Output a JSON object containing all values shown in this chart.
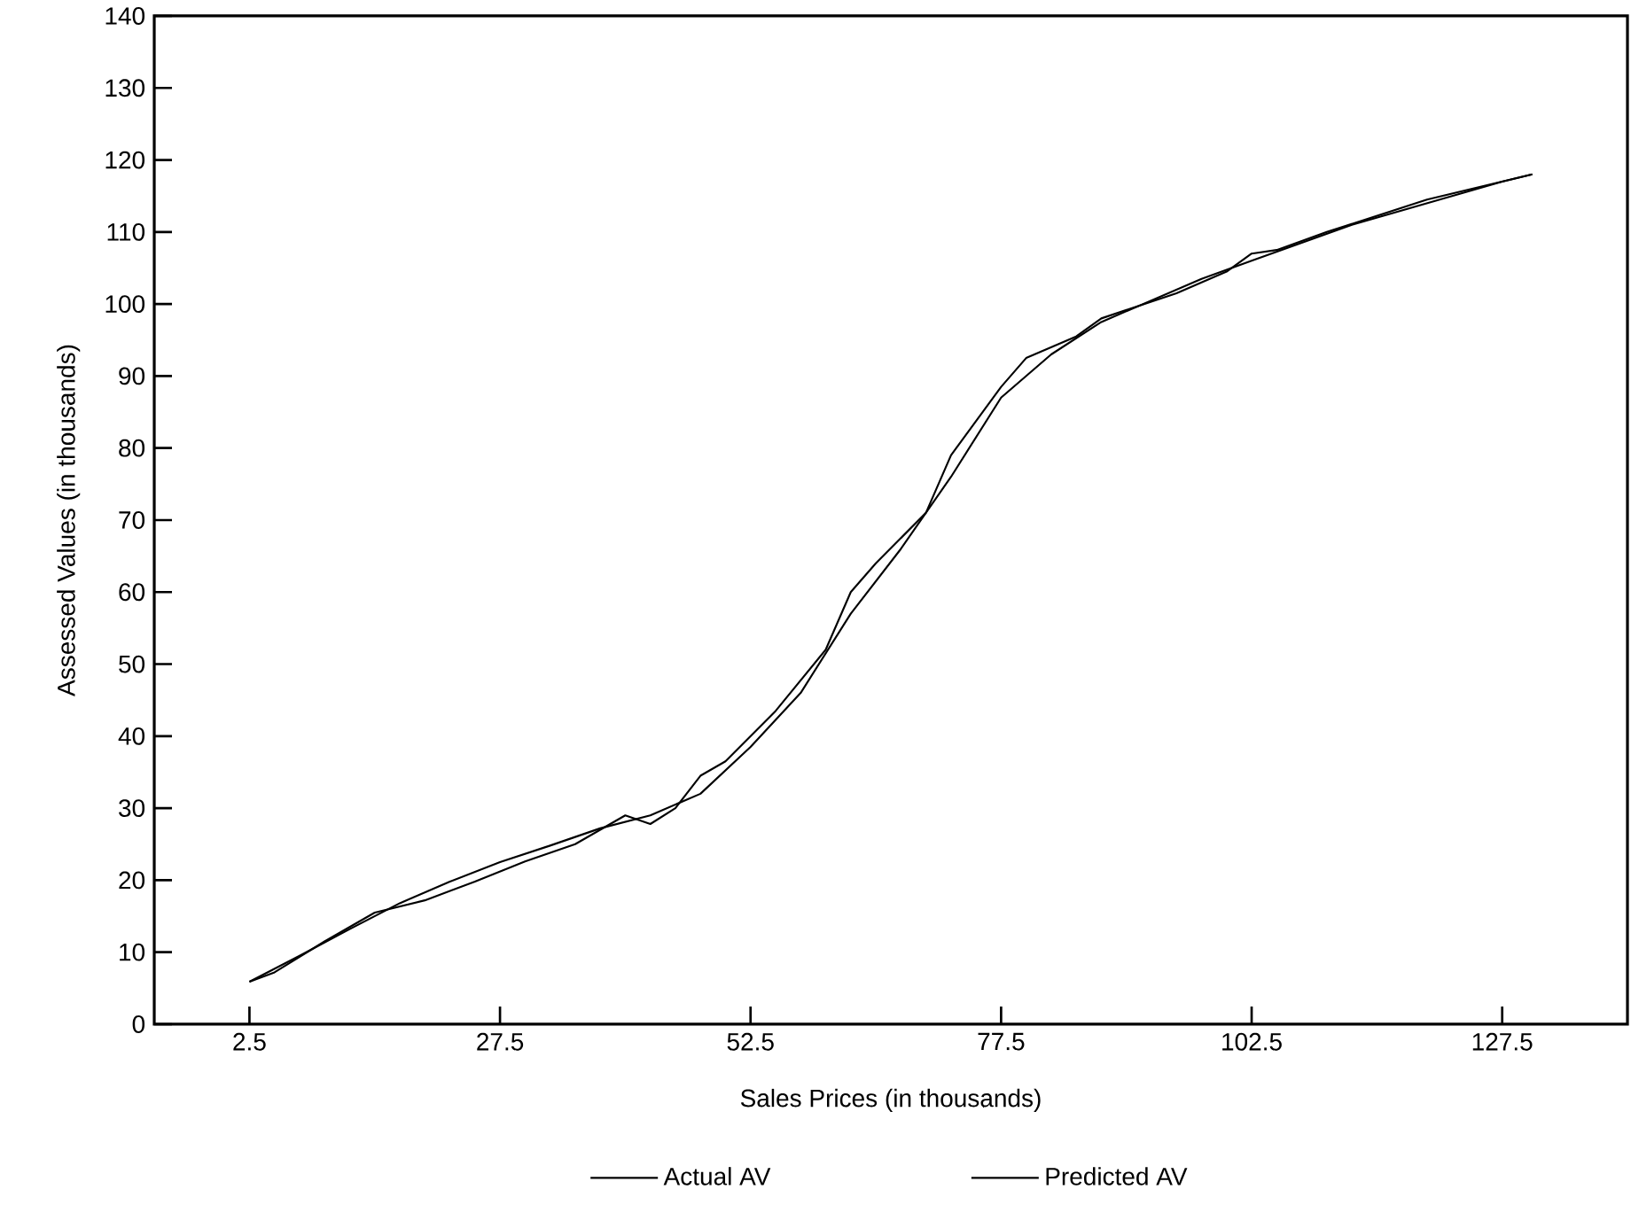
{
  "chart_data": {
    "type": "line",
    "xlabel": "Sales Prices (in thousands)",
    "ylabel": "Assessed Values (in thousands)",
    "xlim": [
      -7,
      140
    ],
    "ylim": [
      0,
      140
    ],
    "xticks": [
      2.5,
      27.5,
      52.5,
      77.5,
      102.5,
      127.5
    ],
    "yticks": [
      0,
      10,
      20,
      30,
      40,
      50,
      60,
      70,
      80,
      90,
      100,
      110,
      120,
      130,
      140
    ],
    "grid": false,
    "legend": "bottom",
    "marker": "none",
    "line_style": "solid",
    "series": [
      {
        "name": "Actual AV",
        "color": "#000000",
        "x": [
          2.5,
          5,
          10,
          15,
          20,
          25,
          30,
          35,
          40,
          42.5,
          45,
          47.5,
          50,
          55,
          60,
          62.5,
          65,
          70,
          72.5,
          77.5,
          80,
          85,
          87.5,
          95,
          100,
          102.5,
          105,
          110,
          120,
          130.5
        ],
        "values": [
          5.9,
          7.2,
          11.5,
          15.5,
          17.2,
          19.8,
          22.6,
          25,
          29,
          27.8,
          30,
          34.5,
          36.5,
          43.5,
          52,
          60,
          64,
          71,
          79,
          88.5,
          92.5,
          95.5,
          98,
          101.5,
          104.5,
          107,
          107.5,
          110,
          114.5,
          118
        ]
      },
      {
        "name": "Predicted AV",
        "color": "#000000",
        "x": [
          2.5,
          7.5,
          12.5,
          17.5,
          22.5,
          27.5,
          32.5,
          37.5,
          42.5,
          47.5,
          52.5,
          57.5,
          62.5,
          67.5,
          72.5,
          77.5,
          82.5,
          87.5,
          92.5,
          97.5,
          102.5,
          107.5,
          112.5,
          117.5,
          122.5,
          127.5,
          130.5
        ],
        "values": [
          5.9,
          9.5,
          13.2,
          16.8,
          19.8,
          22.5,
          24.8,
          27.2,
          29,
          32,
          38.5,
          46,
          57,
          66,
          76,
          87,
          93,
          97.5,
          100.5,
          103.5,
          106,
          108.5,
          111,
          113,
          115,
          117,
          118
        ]
      }
    ]
  }
}
